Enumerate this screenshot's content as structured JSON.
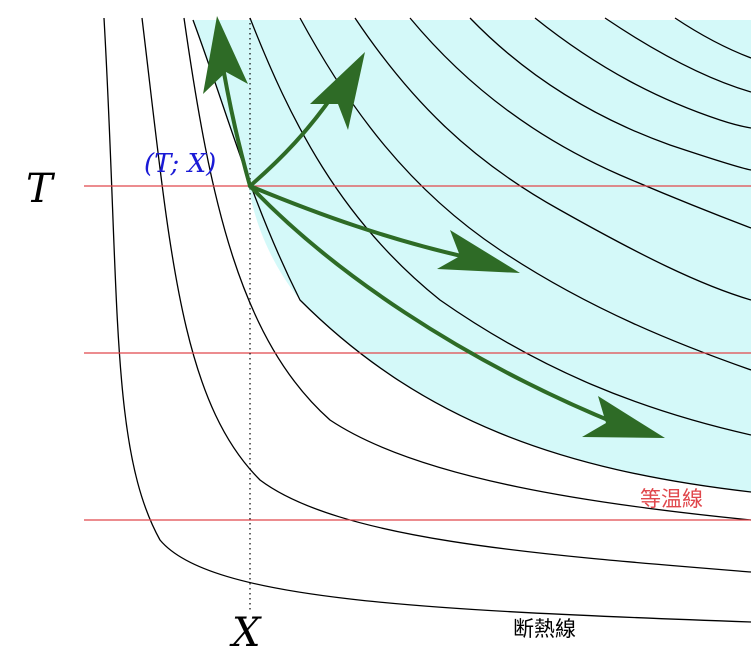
{
  "labels": {
    "temperature": "T",
    "position": "X",
    "point": "(T; X)",
    "isotherm": "等温線",
    "adiabat": "断熱線"
  },
  "colors": {
    "region_fill": "#d4f9f9",
    "isotherm_line": "#e0474c",
    "adiabat_line": "#000000",
    "arrow": "#2e6b26",
    "point_label": "#1a1ad6",
    "isotherm_label": "#e0474c"
  }
}
